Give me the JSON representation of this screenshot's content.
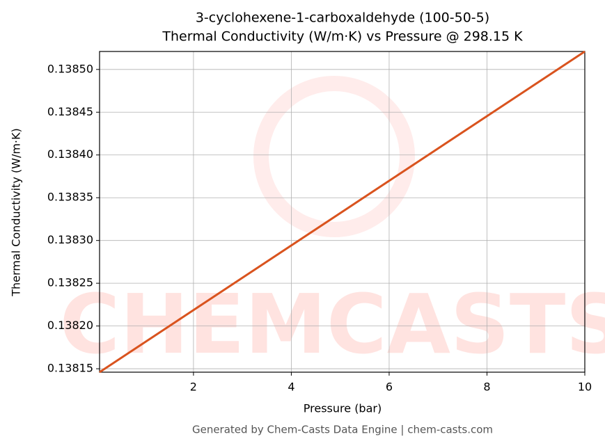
{
  "chart_data": {
    "type": "line",
    "title": "3-cyclohexene-1-carboxaldehyde (100-50-5)",
    "subtitle": "Thermal Conductivity (W/m·K) vs Pressure @ 298.15 K",
    "x_label": "Pressure (bar)",
    "y_label": "Thermal Conductivity (W/m·K)",
    "footer": "Generated by Chem-Casts Data Engine | chem-casts.com",
    "watermark": "CHEMCASTS",
    "x": [
      0.08,
      10
    ],
    "series": [
      {
        "name": "Thermal Conductivity",
        "color": "#d9531e",
        "values": [
          0.138146,
          0.138521
        ]
      }
    ],
    "xlim": [
      0.08,
      10
    ],
    "ylim": [
      0.138146,
      0.138521
    ],
    "xticks": [
      2,
      4,
      6,
      8,
      10
    ],
    "yticks": [
      0.13815,
      {
        "value": 0.1382,
        "label": "0.13820"
      },
      0.13825,
      {
        "value": 0.1383,
        "label": "0.13830"
      },
      0.13835,
      {
        "value": 0.1384,
        "label": "0.13840"
      },
      0.13845,
      {
        "value": 0.1385,
        "label": "0.13850"
      }
    ],
    "grid": true
  }
}
